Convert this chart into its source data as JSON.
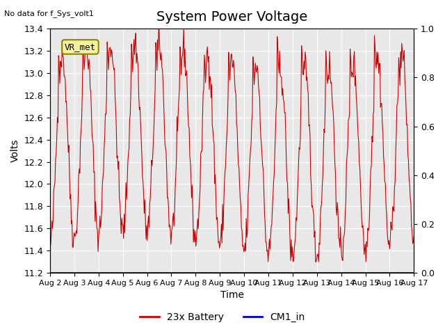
{
  "title": "System Power Voltage",
  "subtitle": "No data for f_Sys_volt1",
  "ylabel_left": "Volts",
  "xlabel": "Time",
  "ylim_left": [
    11.2,
    13.4
  ],
  "ylim_right": [
    0.0,
    1.0
  ],
  "yticks_left": [
    11.2,
    11.4,
    11.6,
    11.8,
    12.0,
    12.2,
    12.4,
    12.6,
    12.8,
    13.0,
    13.2,
    13.4
  ],
  "yticks_right": [
    0.0,
    0.2,
    0.4,
    0.6,
    0.8,
    1.0
  ],
  "xticklabels": [
    "Aug 2",
    "Aug 3",
    "Aug 4",
    "Aug 5",
    "Aug 6",
    "Aug 7",
    "Aug 8",
    "Aug 9",
    "Aug 10",
    "Aug 11",
    "Aug 12",
    "Aug 13",
    "Aug 14",
    "Aug 15",
    "Aug 16",
    "Aug 17"
  ],
  "xtick_positions": [
    0,
    1,
    2,
    3,
    4,
    5,
    6,
    7,
    8,
    9,
    10,
    11,
    12,
    13,
    14,
    15
  ],
  "battery_color": "#cc0000",
  "cm1_color": "#0000cc",
  "background_color": "#e8e8e8",
  "legend_battery": "23x Battery",
  "legend_cm1": "CM1_in",
  "vr_met_label": "VR_met",
  "vr_met_bg": "#f5f0a0",
  "vr_met_border": "#888800",
  "title_fontsize": 14,
  "label_fontsize": 10,
  "tick_fontsize": 9,
  "grid_color": "#ffffff",
  "fig_background": "#ffffff"
}
